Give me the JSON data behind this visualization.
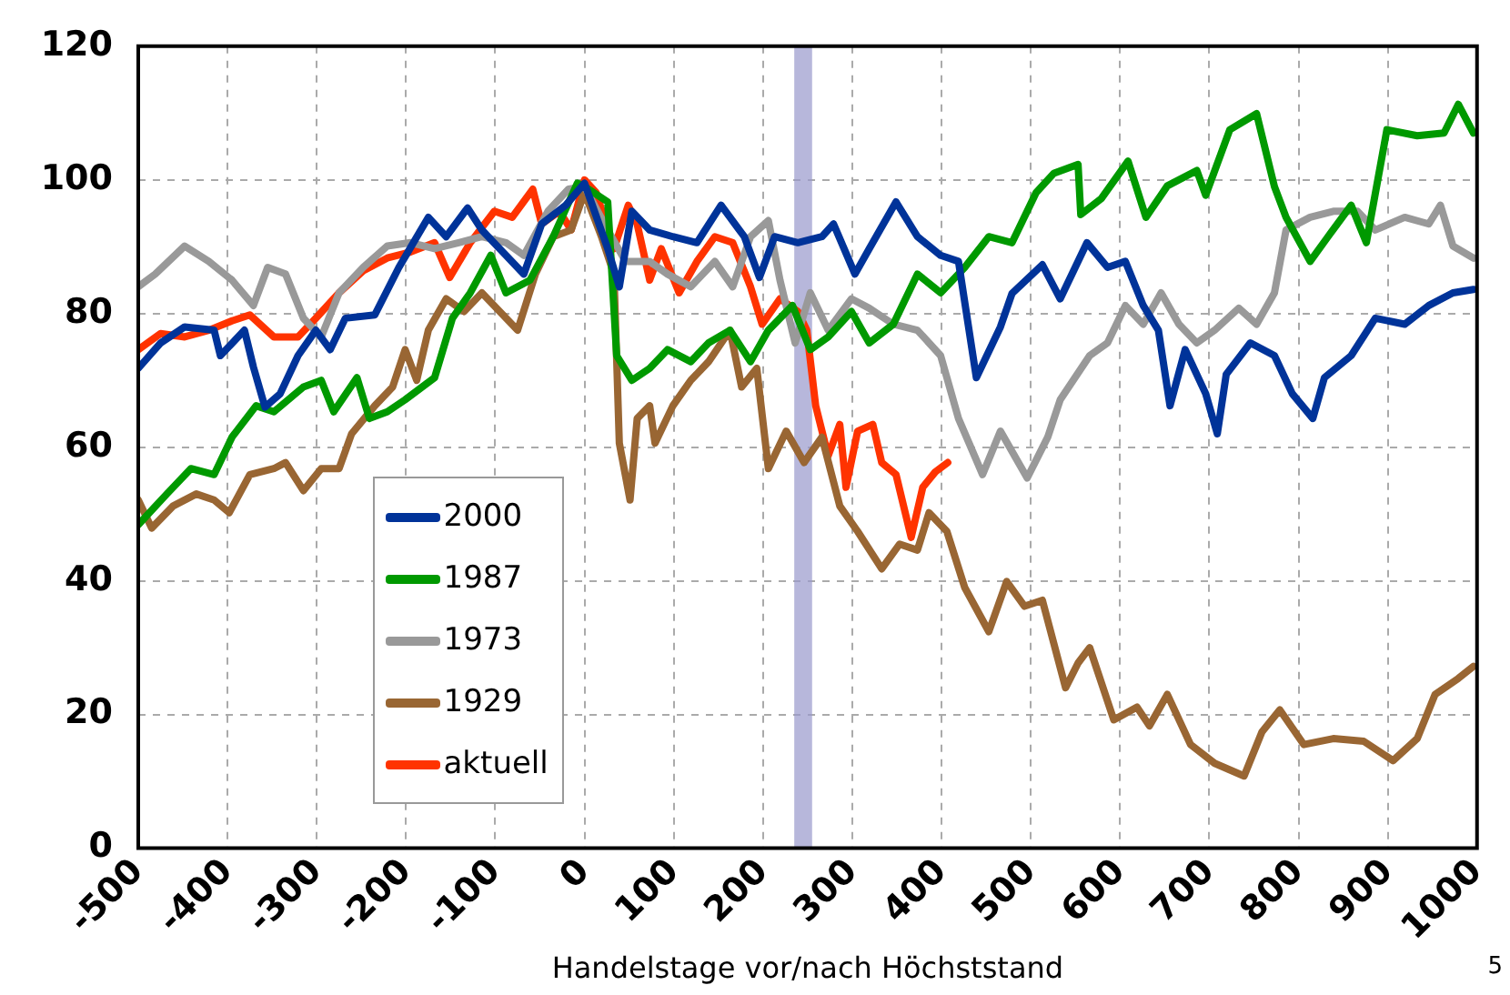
{
  "chart_data": {
    "type": "line",
    "xlabel": "Handelstage vor/nach Höchststand",
    "xlim": [
      -500,
      1000
    ],
    "xticks": [
      -500,
      -400,
      -300,
      -200,
      -100,
      0,
      100,
      200,
      300,
      400,
      500,
      600,
      700,
      800,
      900,
      1000
    ],
    "ylim": [
      0,
      120
    ],
    "yticks": [
      0,
      20,
      40,
      60,
      80,
      100,
      120
    ],
    "grid": true,
    "legend": "bottom left",
    "marker": "none",
    "line_style": "solid",
    "bands": [
      {
        "axis": "x",
        "from": 235,
        "to": 255,
        "color": "#9999cc"
      }
    ],
    "annotations": [
      "5"
    ],
    "series": [
      {
        "name": "2000",
        "color": "#003399",
        "x": [
          -500,
          -475,
          -448,
          -415,
          -408,
          -381,
          -371,
          -358,
          -341,
          -321,
          -301,
          -285,
          -268,
          -235,
          -208,
          -175,
          -155,
          -131,
          -115,
          -88,
          -68,
          -48,
          -21,
          0,
          26,
          39,
          53,
          73,
          99,
          126,
          153,
          179,
          196,
          213,
          239,
          266,
          279,
          303,
          319,
          349,
          373,
          399,
          419,
          439,
          466,
          479,
          513,
          533,
          563,
          586,
          606,
          626,
          643,
          656,
          673,
          696,
          709,
          719,
          746,
          773,
          793,
          816,
          829,
          859,
          886,
          919,
          946,
          973,
          996
        ],
        "values": [
          71.8,
          75.6,
          78,
          77.5,
          73.7,
          77.5,
          72,
          66,
          68,
          73.7,
          77.5,
          74.6,
          79.3,
          79.8,
          86.9,
          94.4,
          91.5,
          95.8,
          92.5,
          88.7,
          85.9,
          93.4,
          96.2,
          99.5,
          89.7,
          84,
          95.3,
          92.5,
          91.5,
          90.6,
          96.2,
          91.5,
          85.4,
          91.5,
          90.6,
          91.5,
          93.4,
          85.9,
          89.7,
          96.7,
          91.5,
          88.7,
          87.8,
          70.4,
          78,
          83,
          87.3,
          82.2,
          90.6,
          86.9,
          87.8,
          81.2,
          77.5,
          66.2,
          74.6,
          68,
          62,
          70.9,
          75.6,
          73.7,
          68,
          64.3,
          70.4,
          73.7,
          79.3,
          78.4,
          81.2,
          83.1,
          83.6
        ]
      },
      {
        "name": "1987",
        "color": "#009900",
        "x": [
          -500,
          -468,
          -441,
          -415,
          -395,
          -368,
          -348,
          -315,
          -295,
          -281,
          -255,
          -241,
          -221,
          -201,
          -168,
          -148,
          -128,
          -105,
          -88,
          -61,
          -35,
          -8,
          0,
          26,
          36,
          53,
          73,
          93,
          119,
          139,
          163,
          186,
          206,
          233,
          253,
          273,
          299,
          319,
          346,
          373,
          399,
          426,
          453,
          479,
          506,
          526,
          553,
          556,
          579,
          609,
          629,
          653,
          686,
          696,
          723,
          753,
          773,
          786,
          813,
          833,
          859,
          876,
          899,
          933,
          963,
          979,
          996
        ],
        "values": [
          48.4,
          53,
          56.8,
          55.9,
          61.5,
          66.2,
          65.3,
          69,
          70,
          65.3,
          70.4,
          64.3,
          65.3,
          67.1,
          70.4,
          79.3,
          83.1,
          88.7,
          83.1,
          85,
          91.5,
          99.5,
          99,
          96.7,
          73.7,
          70,
          71.8,
          74.6,
          72.8,
          75.6,
          77.5,
          72.8,
          77.5,
          81.2,
          74.6,
          76.5,
          80.3,
          75.6,
          78.4,
          85.9,
          83.1,
          86.9,
          91.5,
          90.6,
          98.1,
          101,
          102.3,
          94.8,
          97.2,
          102.8,
          94.4,
          99.1,
          101.4,
          97.7,
          107.5,
          109.9,
          99,
          94.4,
          87.8,
          91.5,
          96.2,
          90.6,
          107.5,
          106.6,
          107,
          111.3,
          107
        ]
      },
      {
        "name": "1973",
        "color": "#999999",
        "x": [
          -500,
          -481,
          -448,
          -421,
          -395,
          -371,
          -355,
          -335,
          -315,
          -295,
          -275,
          -248,
          -221,
          -195,
          -168,
          -141,
          -115,
          -88,
          -68,
          -41,
          -18,
          0,
          26,
          46,
          73,
          93,
          119,
          146,
          166,
          186,
          206,
          219,
          236,
          253,
          273,
          299,
          319,
          346,
          373,
          399,
          419,
          446,
          466,
          496,
          519,
          533,
          566,
          586,
          606,
          626,
          646,
          666,
          686,
          706,
          733,
          753,
          773,
          786,
          813,
          839,
          866,
          886,
          919,
          946,
          959,
          973,
          996
        ],
        "values": [
          84,
          85.9,
          90.1,
          87.8,
          85,
          81.2,
          86.9,
          85.9,
          79.3,
          76.5,
          83.1,
          86.9,
          90.1,
          90.6,
          89.7,
          90.6,
          91.5,
          90.6,
          88.7,
          95.3,
          98.6,
          99,
          92.5,
          87.8,
          87.8,
          85.9,
          84,
          87.8,
          84,
          91.5,
          93.9,
          85,
          75.6,
          83.1,
          77.5,
          82.2,
          80.8,
          78.4,
          77.5,
          73.7,
          64.3,
          55.9,
          62.4,
          55.4,
          61.5,
          67.1,
          73.7,
          75.6,
          81.2,
          78.4,
          83.1,
          78.4,
          75.6,
          77.5,
          80.8,
          78.4,
          83.1,
          92.5,
          94.4,
          95.3,
          95.3,
          92.5,
          94.4,
          93.4,
          96.2,
          90.1,
          88.3
        ]
      },
      {
        "name": "1929",
        "color": "#996633",
        "x": [
          -500,
          -485,
          -461,
          -435,
          -415,
          -398,
          -375,
          -348,
          -335,
          -315,
          -295,
          -275,
          -261,
          -235,
          -215,
          -201,
          -188,
          -175,
          -155,
          -135,
          -115,
          -95,
          -75,
          -55,
          -35,
          -15,
          0,
          19,
          33,
          39,
          51,
          59,
          73,
          79,
          99,
          119,
          139,
          163,
          176,
          193,
          206,
          226,
          246,
          266,
          286,
          306,
          333,
          353,
          373,
          386,
          406,
          426,
          453,
          473,
          493,
          513,
          539,
          553,
          566,
          593,
          619,
          633,
          653,
          679,
          706,
          739,
          759,
          779,
          806,
          839,
          873,
          906,
          933,
          953,
          979,
          996
        ],
        "values": [
          52.1,
          47.9,
          51.2,
          53,
          52.1,
          50.2,
          55.9,
          56.8,
          57.7,
          53.5,
          56.8,
          56.8,
          62,
          66.2,
          69,
          74.6,
          70,
          77.5,
          82.2,
          80.3,
          83.1,
          80.3,
          77.5,
          85.9,
          91.5,
          92.5,
          98.1,
          91.5,
          85.9,
          60.6,
          52.1,
          64.3,
          66.2,
          60.6,
          66.2,
          70,
          72.8,
          77.5,
          69,
          71.8,
          56.8,
          62.4,
          57.7,
          61.5,
          51.2,
          47.4,
          41.8,
          45.5,
          44.6,
          50.2,
          47.4,
          39,
          32.4,
          39.9,
          36.2,
          37.1,
          24,
          27.7,
          30,
          19.2,
          21.1,
          18.3,
          23,
          15.5,
          12.7,
          10.8,
          17.4,
          20.7,
          15.5,
          16.4,
          16,
          13.1,
          16.4,
          23,
          25.4,
          27.2
        ]
      },
      {
        "name": "aktuell",
        "color": "#ff3300",
        "x": [
          -500,
          -475,
          -448,
          -421,
          -395,
          -375,
          -348,
          -321,
          -301,
          -275,
          -248,
          -221,
          -195,
          -168,
          -151,
          -128,
          -101,
          -81,
          -58,
          -48,
          -28,
          -15,
          0,
          13,
          33,
          49,
          59,
          73,
          86,
          106,
          126,
          146,
          166,
          186,
          199,
          219,
          239,
          249,
          259,
          273,
          286,
          293,
          306,
          323,
          333,
          349,
          366,
          379,
          393,
          407
        ],
        "values": [
          74.6,
          77,
          76.5,
          77.5,
          78.9,
          79.8,
          76.5,
          76.5,
          79.3,
          83.1,
          86.4,
          88.3,
          89.2,
          90.6,
          85.4,
          90.6,
          95.3,
          94.4,
          98.6,
          93.4,
          95.3,
          92.5,
          100,
          98.1,
          89.7,
          96.2,
          93.4,
          85,
          89.7,
          83.1,
          87.8,
          91.5,
          90.6,
          84,
          78.4,
          82.2,
          80.3,
          77.5,
          66.2,
          58.7,
          63.4,
          54,
          62.4,
          63.4,
          57.7,
          55.9,
          46.5,
          54,
          56.3,
          57.7
        ]
      }
    ]
  }
}
